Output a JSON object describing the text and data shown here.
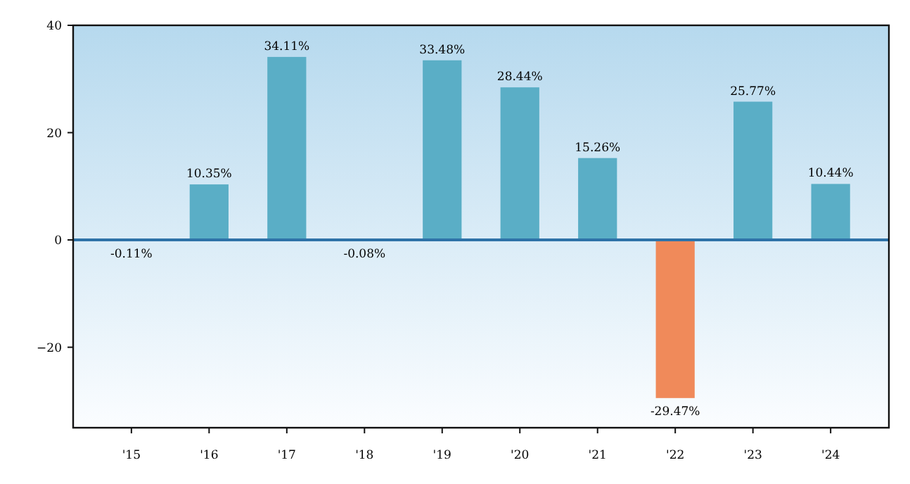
{
  "chart_data": {
    "type": "bar",
    "categories": [
      "'15",
      "'16",
      "'17",
      "'18",
      "'19",
      "'20",
      "'21",
      "'22",
      "'23",
      "'24"
    ],
    "values": [
      -0.11,
      10.35,
      34.11,
      -0.08,
      33.48,
      28.44,
      15.26,
      -29.47,
      25.77,
      10.44
    ],
    "colors": [
      "#5aaec6",
      "#5aaec6",
      "#5aaec6",
      "#5aaec6",
      "#5aaec6",
      "#5aaec6",
      "#5aaec6",
      "#f08a5a",
      "#5aaec6",
      "#5aaec6"
    ],
    "value_labels": [
      "-0.11%",
      "10.35%",
      "34.11%",
      "-0.08%",
      "33.48%",
      "28.44%",
      "15.26%",
      "-29.47%",
      "25.77%",
      "10.44%"
    ],
    "ylim": [
      -35,
      40
    ],
    "yticks": [
      -20,
      0,
      20,
      40
    ],
    "ref_lines": [
      {
        "axis": "y",
        "value": 0,
        "color": "#2e72a8"
      }
    ],
    "grid": false
  }
}
